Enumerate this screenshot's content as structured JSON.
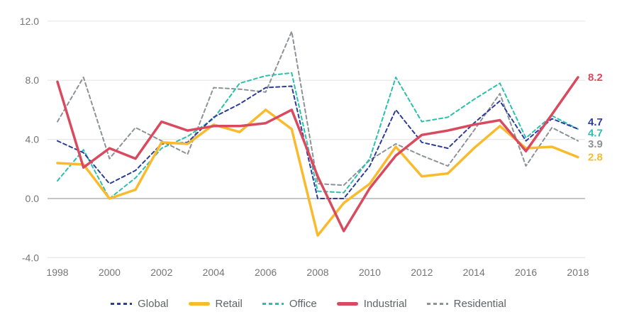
{
  "chart_data": {
    "type": "line",
    "x": [
      1998,
      1999,
      2000,
      2001,
      2002,
      2003,
      2004,
      2005,
      2006,
      2007,
      2008,
      2009,
      2010,
      2011,
      2012,
      2013,
      2014,
      2015,
      2016,
      2017,
      2018
    ],
    "x_tick_labels": [
      "1998",
      "2000",
      "2002",
      "2004",
      "2006",
      "2008",
      "2010",
      "2012",
      "2014",
      "2016",
      "2018"
    ],
    "y_ticks": [
      12,
      8,
      4,
      0,
      -4
    ],
    "y_tick_labels": [
      "12.0",
      "8.0",
      "4.0",
      "0.0",
      "-4.0"
    ],
    "ylim": [
      -4.5,
      12.8
    ],
    "grid": "horizontal-only",
    "legend_position": "bottom-center",
    "series": [
      {
        "name": "Global",
        "color": "#2e3d97",
        "style": "dashed",
        "end_label": "4.7",
        "values": [
          3.9,
          3.1,
          1.0,
          1.9,
          3.7,
          3.8,
          5.5,
          6.4,
          7.5,
          7.6,
          0.0,
          0.0,
          2.2,
          6.0,
          3.8,
          3.4,
          5.1,
          6.6,
          3.9,
          5.4,
          4.7
        ]
      },
      {
        "name": "Retail",
        "color": "#f9bb2d",
        "style": "solid",
        "end_label": "2.8",
        "values": [
          2.4,
          2.3,
          0.0,
          0.6,
          3.8,
          3.7,
          5.0,
          4.5,
          6.0,
          4.7,
          -2.5,
          -0.3,
          1.0,
          3.5,
          1.5,
          1.7,
          3.4,
          4.9,
          3.4,
          3.5,
          2.8
        ]
      },
      {
        "name": "Office",
        "color": "#2ac0ae",
        "style": "dashed",
        "end_label": "4.7",
        "values": [
          1.2,
          3.3,
          0.0,
          1.4,
          3.4,
          4.2,
          5.4,
          7.8,
          8.3,
          8.5,
          0.5,
          0.4,
          2.7,
          8.2,
          5.2,
          5.5,
          6.7,
          7.8,
          4.1,
          5.6,
          4.7
        ]
      },
      {
        "name": "Industrial",
        "color": "#d94a5f",
        "style": "solid",
        "end_label": "8.2",
        "values": [
          7.9,
          2.1,
          3.4,
          2.7,
          5.2,
          4.6,
          4.9,
          4.9,
          5.1,
          6.0,
          1.5,
          -2.2,
          0.7,
          2.9,
          4.3,
          4.6,
          5.0,
          5.3,
          3.2,
          5.7,
          8.2
        ]
      },
      {
        "name": "Residential",
        "color": "#8d9296",
        "style": "dashed",
        "end_label": "3.9",
        "values": [
          5.2,
          8.2,
          2.7,
          4.8,
          3.9,
          3.0,
          7.5,
          7.4,
          7.2,
          11.3,
          1.0,
          0.9,
          2.6,
          3.7,
          2.9,
          2.2,
          4.6,
          7.1,
          2.2,
          4.8,
          3.9
        ]
      }
    ]
  },
  "colors": {
    "grid": "#e7e7e7",
    "zero_line": "#b0b3b5",
    "axis_text": "#757575",
    "legend_text": "#5f6368",
    "background": "#ffffff"
  }
}
